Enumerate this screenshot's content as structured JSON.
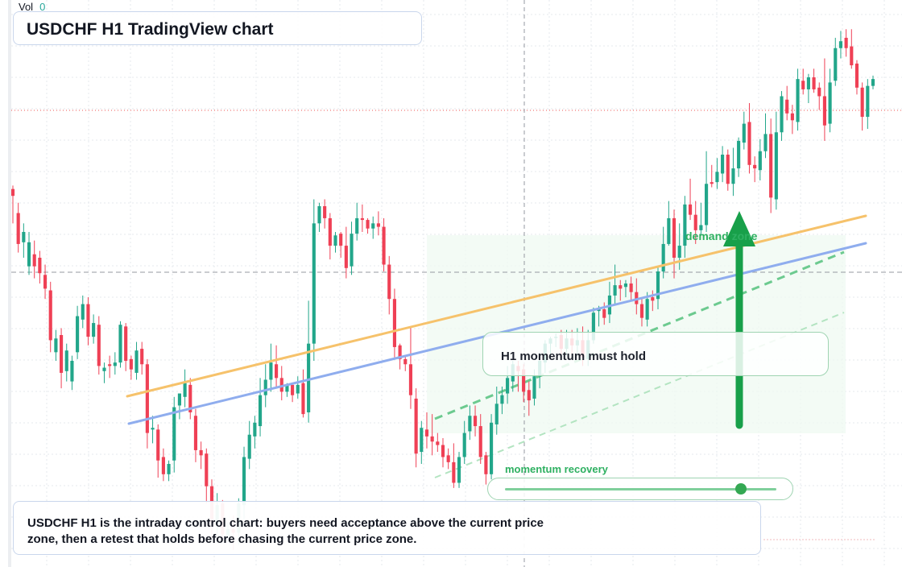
{
  "header": {
    "vol_label": "Vol",
    "vol_value": "0"
  },
  "title": "USDCHF H1 TradingView chart",
  "callout": {
    "text": "H1 momentum must hold"
  },
  "zone_label": "demand zone",
  "momentum": {
    "label": "momentum recovery",
    "level": 0.87
  },
  "caption": "USDCHF H1 is the intraday control chart: buyers need acceptance above the current price zone, then a retest that holds before chasing the current price zone.",
  "colors": {
    "up": "#22a68a",
    "down": "#ef4055",
    "trend_orange": "#f6c26b",
    "trend_blue": "#8fadee",
    "signal_green": "#34a853",
    "price_line": "#ef5350"
  },
  "chart_data": {
    "type": "candlestick",
    "symbol": "USDCHF",
    "timeframe": "H1",
    "x": "bar index",
    "y": "price (unlabelled axis, relative units)",
    "grid": true,
    "candles": [
      [
        0,
        600,
        596,
        580,
        602
      ],
      [
        1,
        586,
        568,
        563,
        592
      ],
      [
        2,
        569,
        575,
        560,
        580
      ],
      [
        3,
        555,
        569,
        550,
        575
      ],
      [
        4,
        562,
        555,
        548,
        570
      ],
      [
        5,
        560,
        551,
        545,
        564
      ],
      [
        6,
        550,
        542,
        536,
        556
      ],
      [
        7,
        541,
        512,
        505,
        546
      ],
      [
        8,
        505,
        513,
        500,
        518
      ],
      [
        9,
        515,
        493,
        484,
        519
      ],
      [
        10,
        494,
        506,
        488,
        510
      ],
      [
        11,
        488,
        500,
        483,
        503
      ],
      [
        12,
        505,
        526,
        501,
        532
      ],
      [
        13,
        524,
        533,
        519,
        538
      ],
      [
        14,
        533,
        514,
        509,
        537
      ],
      [
        15,
        514,
        522,
        510,
        527
      ],
      [
        16,
        521,
        497,
        492,
        526
      ],
      [
        17,
        494,
        496,
        487,
        499
      ],
      [
        18,
        498,
        497,
        490,
        503
      ],
      [
        19,
        497,
        499,
        492,
        505
      ],
      [
        20,
        499,
        521,
        496,
        523
      ],
      [
        21,
        520,
        500,
        494,
        522
      ],
      [
        22,
        501,
        495,
        489,
        503
      ],
      [
        23,
        493,
        506,
        489,
        511
      ],
      [
        24,
        507,
        498,
        492,
        511
      ],
      [
        25,
        498,
        458,
        449,
        501
      ],
      [
        26,
        460,
        461,
        452,
        468
      ],
      [
        27,
        460,
        442,
        432,
        463
      ],
      [
        28,
        444,
        434,
        430,
        449
      ],
      [
        29,
        434,
        440,
        430,
        442
      ],
      [
        30,
        442,
        473,
        435,
        479
      ],
      [
        31,
        474,
        481,
        466,
        480
      ],
      [
        32,
        479,
        487,
        473,
        495
      ],
      [
        33,
        486,
        470,
        466,
        490
      ],
      [
        34,
        468,
        448,
        441,
        472
      ],
      [
        35,
        448,
        445,
        437,
        453
      ],
      [
        36,
        446,
        427,
        417,
        449
      ],
      [
        37,
        427,
        405,
        397,
        431
      ],
      [
        38,
        405,
        416,
        399,
        423
      ],
      [
        39,
        417,
        399,
        396,
        419
      ],
      [
        40,
        398,
        402,
        394,
        406
      ],
      [
        41,
        402,
        400,
        390,
        410
      ],
      [
        42,
        400,
        417,
        393,
        420
      ],
      [
        43,
        416,
        444,
        408,
        450
      ],
      [
        44,
        443,
        457,
        437,
        465
      ],
      [
        45,
        456,
        464,
        449,
        468
      ],
      [
        46,
        462,
        480,
        456,
        490
      ],
      [
        47,
        480,
        489,
        473,
        498
      ],
      [
        48,
        489,
        499,
        482,
        510
      ],
      [
        49,
        498,
        490,
        484,
        509
      ],
      [
        50,
        490,
        482,
        477,
        497
      ],
      [
        51,
        482,
        486,
        479,
        487
      ],
      [
        52,
        486,
        480,
        476,
        486
      ],
      [
        53,
        481,
        486,
        478,
        491
      ],
      [
        54,
        487,
        469,
        467,
        495
      ],
      [
        55,
        470,
        510,
        464,
        535
      ],
      [
        56,
        510,
        580,
        500,
        594
      ],
      [
        57,
        580,
        590,
        575,
        592
      ],
      [
        58,
        590,
        583,
        577,
        594
      ],
      [
        59,
        583,
        567,
        559,
        586
      ],
      [
        60,
        567,
        573,
        563,
        575
      ],
      [
        61,
        574,
        567,
        560,
        575
      ],
      [
        62,
        567,
        554,
        548,
        578
      ],
      [
        63,
        555,
        574,
        550,
        581
      ],
      [
        64,
        574,
        583,
        570,
        592
      ],
      [
        65,
        583,
        582,
        575,
        591
      ],
      [
        66,
        582,
        577,
        574,
        583
      ],
      [
        67,
        577,
        580,
        571,
        584
      ],
      [
        68,
        580,
        578,
        573,
        587
      ],
      [
        69,
        578,
        556,
        552,
        583
      ],
      [
        70,
        556,
        536,
        527,
        561
      ],
      [
        71,
        536,
        508,
        502,
        542
      ],
      [
        72,
        509,
        501,
        495,
        510
      ],
      [
        73,
        501,
        498,
        494,
        503
      ],
      [
        74,
        498,
        480,
        472,
        519
      ],
      [
        75,
        478,
        446,
        438,
        484
      ],
      [
        76,
        447,
        461,
        440,
        465
      ],
      [
        77,
        460,
        456,
        449,
        470
      ],
      [
        78,
        456,
        453,
        445,
        469
      ],
      [
        79,
        453,
        451,
        447,
        458
      ],
      [
        80,
        451,
        444,
        438,
        455
      ],
      [
        81,
        445,
        441,
        437,
        449
      ],
      [
        82,
        441,
        429,
        426,
        452
      ],
      [
        83,
        429,
        444,
        426,
        447
      ],
      [
        84,
        444,
        458,
        440,
        465
      ],
      [
        85,
        459,
        468,
        454,
        474
      ],
      [
        86,
        468,
        462,
        456,
        474
      ],
      [
        87,
        462,
        444,
        440,
        469
      ],
      [
        88,
        445,
        434,
        428,
        447
      ],
      [
        89,
        434,
        464,
        431,
        469
      ],
      [
        90,
        463,
        475,
        457,
        485
      ],
      [
        91,
        475,
        480,
        469,
        485
      ],
      [
        92,
        481,
        490,
        475,
        497
      ],
      [
        93,
        488,
        498,
        482,
        500
      ],
      [
        94,
        497,
        494,
        482,
        500
      ],
      [
        95,
        495,
        482,
        476,
        498
      ],
      [
        96,
        483,
        477,
        468,
        488
      ],
      [
        97,
        478,
        491,
        474,
        495
      ],
      [
        98,
        491,
        500,
        484,
        505
      ],
      [
        99,
        499,
        510,
        493,
        512
      ],
      [
        100,
        510,
        513,
        503,
        514
      ],
      [
        101,
        514,
        514,
        508,
        516
      ],
      [
        102,
        515,
        507,
        503,
        518
      ],
      [
        103,
        507,
        513,
        503,
        518
      ],
      [
        104,
        513,
        509,
        504,
        518
      ],
      [
        105,
        509,
        512,
        503,
        519
      ],
      [
        106,
        512,
        502,
        497,
        520
      ],
      [
        107,
        501,
        512,
        497,
        518
      ],
      [
        108,
        512,
        528,
        510,
        531
      ],
      [
        109,
        529,
        530,
        520,
        532
      ],
      [
        110,
        530,
        525,
        521,
        534
      ],
      [
        111,
        527,
        538,
        522,
        546
      ],
      [
        112,
        538,
        544,
        533,
        556
      ],
      [
        113,
        544,
        542,
        535,
        547
      ],
      [
        114,
        543,
        545,
        537,
        547
      ],
      [
        115,
        545,
        540,
        535,
        549
      ],
      [
        116,
        540,
        533,
        527,
        548
      ],
      [
        117,
        533,
        525,
        520,
        537
      ],
      [
        118,
        524,
        536,
        520,
        540
      ],
      [
        119,
        537,
        535,
        529,
        541
      ],
      [
        120,
        536,
        552,
        530,
        555
      ],
      [
        121,
        552,
        568,
        548,
        578
      ],
      [
        122,
        568,
        583,
        567,
        593
      ],
      [
        123,
        583,
        560,
        548,
        588
      ],
      [
        124,
        560,
        567,
        553,
        580
      ],
      [
        125,
        567,
        591,
        560,
        596
      ],
      [
        126,
        591,
        585,
        582,
        606
      ],
      [
        127,
        585,
        576,
        568,
        593
      ],
      [
        128,
        576,
        579,
        573,
        592
      ],
      [
        129,
        579,
        603,
        575,
        622
      ],
      [
        130,
        604,
        603,
        601,
        614
      ],
      [
        131,
        604,
        610,
        600,
        618
      ],
      [
        132,
        609,
        620,
        604,
        625
      ],
      [
        133,
        620,
        603,
        599,
        623
      ],
      [
        134,
        603,
        612,
        596,
        624
      ],
      [
        135,
        612,
        628,
        607,
        630
      ],
      [
        136,
        627,
        638,
        623,
        645
      ],
      [
        137,
        639,
        614,
        609,
        650
      ],
      [
        138,
        614,
        612,
        604,
        619
      ],
      [
        139,
        611,
        622,
        605,
        629
      ],
      [
        140,
        622,
        632,
        618,
        644
      ],
      [
        141,
        632,
        595,
        586,
        641
      ],
      [
        142,
        594,
        633,
        588,
        645
      ],
      [
        143,
        633,
        654,
        628,
        657
      ],
      [
        144,
        652,
        644,
        640,
        660
      ],
      [
        145,
        644,
        640,
        632,
        649
      ],
      [
        146,
        639,
        664,
        634,
        670
      ],
      [
        147,
        663,
        658,
        655,
        670
      ],
      [
        148,
        658,
        665,
        650,
        667
      ],
      [
        149,
        665,
        658,
        656,
        670
      ],
      [
        150,
        659,
        654,
        646,
        662
      ],
      [
        151,
        654,
        637,
        628,
        676
      ],
      [
        152,
        638,
        662,
        633,
        670
      ],
      [
        153,
        663,
        682,
        660,
        688
      ],
      [
        154,
        682,
        686,
        676,
        692
      ],
      [
        155,
        688,
        682,
        677,
        693
      ],
      [
        156,
        683,
        672,
        670,
        693
      ],
      [
        157,
        673,
        659,
        655,
        675
      ],
      [
        158,
        659,
        642,
        634,
        662
      ],
      [
        159,
        642,
        660,
        635,
        664
      ],
      [
        160,
        660,
        664,
        658,
        666
      ]
    ],
    "trend_lines": [
      "orange rising trend line",
      "blue rising trend line",
      "green dashed support line",
      "green dashed lower support line"
    ],
    "horizontal_lines": [
      "red dotted current price line",
      "grey dashed level line"
    ],
    "annotations": [
      "demand zone",
      "H1 momentum must hold",
      "momentum recovery"
    ]
  }
}
